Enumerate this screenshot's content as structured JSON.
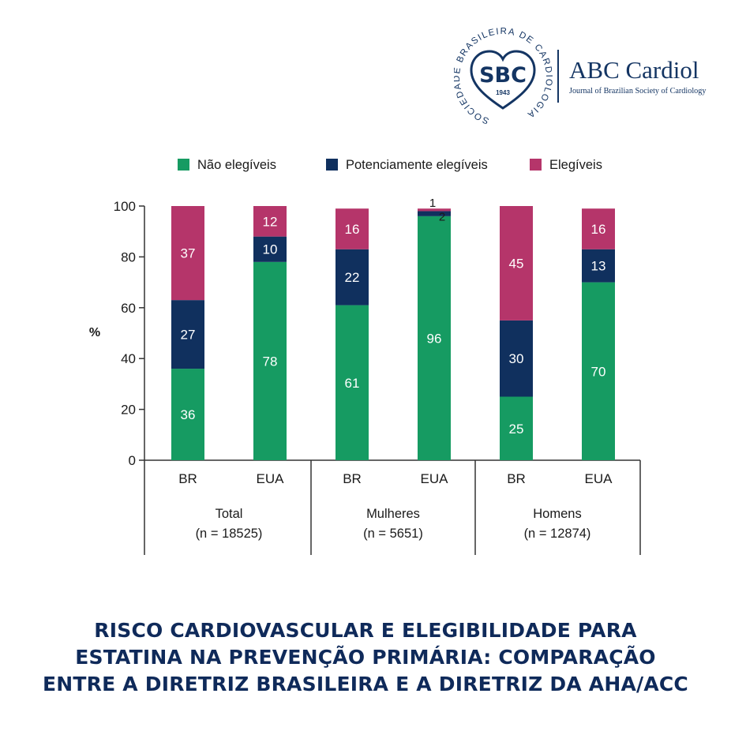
{
  "brand": {
    "seal_text": "SOCIEDADE BRASILEIRA DE CARDIOLOGIA",
    "seal_abbr": "SBC",
    "seal_year": "1943",
    "journal_name": "ABC Cardiol",
    "journal_subtitle": "Journal of Brazilian Society of Cardiology",
    "navy": "#143563"
  },
  "chart_data": {
    "type": "bar",
    "stacked": true,
    "ylabel": "%",
    "ylim": [
      0,
      100
    ],
    "yticks": [
      0,
      20,
      40,
      60,
      80,
      100
    ],
    "grid": false,
    "legend_position": "top",
    "categories": [
      "BR",
      "EUA",
      "BR",
      "EUA",
      "BR",
      "EUA"
    ],
    "groups": [
      {
        "name": "Total",
        "n": "(n = 18525)"
      },
      {
        "name": "Mulheres",
        "n": "(n = 5651)"
      },
      {
        "name": "Homens",
        "n": "(n = 12874)"
      }
    ],
    "series": [
      {
        "name": "Não elegíveis",
        "color": "#169b62",
        "values": [
          36,
          78,
          61,
          96,
          25,
          70
        ]
      },
      {
        "name": "Potenciamente elegíveis",
        "color": "#10305e",
        "values": [
          27,
          10,
          22,
          2,
          30,
          13
        ]
      },
      {
        "name": "Elegíveis",
        "color": "#b5356a",
        "values": [
          37,
          12,
          16,
          1,
          45,
          16
        ]
      }
    ]
  },
  "footer": {
    "title_lines": [
      "RISCO CARDIOVASCULAR E ELEGIBILIDADE PARA",
      "ESTATINA NA PREVENÇÃO PRIMÁRIA: COMPARAÇÃO",
      "ENTRE A DIRETRIZ BRASILEIRA E A DIRETRIZ DA AHA/ACC"
    ]
  }
}
